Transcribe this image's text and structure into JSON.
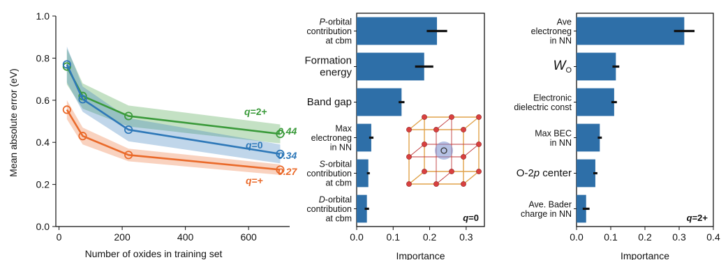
{
  "chart_data": [
    {
      "type": "line",
      "xlabel": "Number of oxides in training set",
      "ylabel": "Mean absolute error (eV)",
      "xlim": [
        -10,
        730
      ],
      "ylim": [
        0.0,
        1.0
      ],
      "xticks": [
        "0",
        "200",
        "400",
        "600"
      ],
      "yticks": [
        "0.0",
        "0.2",
        "0.4",
        "0.6",
        "0.8",
        "1.0"
      ],
      "x": [
        25,
        75,
        220,
        700
      ],
      "series": [
        {
          "name": "q=2+",
          "color": "#3a9a3a",
          "values": [
            0.76,
            0.62,
            0.525,
            0.44
          ],
          "band": [
            0.085,
            0.06,
            0.05,
            0.045
          ],
          "value_label": "0.44"
        },
        {
          "name": "q=0",
          "color": "#2e78b8",
          "values": [
            0.77,
            0.605,
            0.46,
            0.345
          ],
          "band": [
            0.085,
            0.06,
            0.055,
            0.045
          ],
          "value_label": "0.34"
        },
        {
          "name": "q=+",
          "color": "#ea6a2a",
          "values": [
            0.555,
            0.43,
            0.34,
            0.27
          ],
          "band": [
            0.045,
            0.04,
            0.03,
            0.025
          ],
          "value_label": "0.27"
        }
      ],
      "grid": false
    },
    {
      "type": "bar",
      "orientation": "horizontal",
      "xlabel": "Importance",
      "xlim": [
        0,
        0.35
      ],
      "xticks": [
        "0.0",
        "0.1",
        "0.2",
        "0.3"
      ],
      "panel_label": "q=0",
      "color": "#2e6fa8",
      "categories": [
        [
          "P-orbital",
          "contribution",
          "at cbm"
        ],
        [
          "Formation",
          "energy"
        ],
        [
          "Band gap"
        ],
        [
          "Max",
          "electroneg",
          "in NN"
        ],
        [
          "S-orbital",
          "contribution",
          "at cbm"
        ],
        [
          "D-orbital",
          "contribution",
          "at cbm"
        ]
      ],
      "values": [
        0.22,
        0.185,
        0.123,
        0.04,
        0.032,
        0.028
      ],
      "errors": [
        0.028,
        0.025,
        0.008,
        0.006,
        0.004,
        0.006
      ],
      "inset": "crystal-structure"
    },
    {
      "type": "bar",
      "orientation": "horizontal",
      "xlabel": "Importance",
      "xlim": [
        0,
        0.4
      ],
      "xticks": [
        "0.0",
        "0.1",
        "0.2",
        "0.3",
        "0.4"
      ],
      "panel_label": "q=2+",
      "color": "#2e6fa8",
      "categories": [
        [
          "Ave",
          "electroneg",
          "in NN"
        ],
        [
          "W_O"
        ],
        [
          "Electronic",
          "dielectric const"
        ],
        [
          "Max BEC",
          "in NN"
        ],
        [
          "O-2p center"
        ],
        [
          "Ave. Bader",
          "charge in NN"
        ]
      ],
      "values": [
        0.315,
        0.115,
        0.11,
        0.068,
        0.055,
        0.028
      ],
      "errors": [
        0.03,
        0.01,
        0.008,
        0.006,
        0.006,
        0.01
      ]
    }
  ]
}
